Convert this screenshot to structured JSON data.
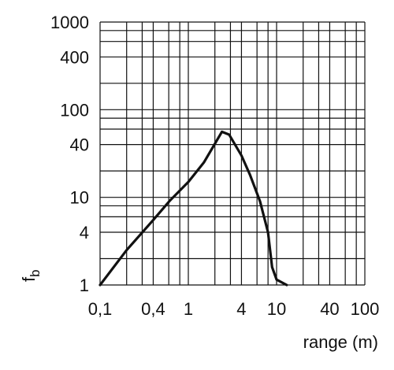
{
  "chart_data": {
    "type": "line",
    "x_label": "range (m)",
    "y_label": "f",
    "y_label_sub": "b",
    "log_x": true,
    "log_y": true,
    "grid": true,
    "xlim": [
      0.1,
      100
    ],
    "ylim": [
      1,
      1000
    ],
    "xticks": [
      {
        "value": 0.1,
        "label": "0,1"
      },
      {
        "value": 0.4,
        "label": "0,4"
      },
      1,
      4,
      10,
      40,
      100
    ],
    "yticks": [
      1,
      4,
      10,
      40,
      100,
      400,
      1000
    ],
    "xgrid": [
      0.1,
      0.2,
      0.3,
      0.4,
      0.6,
      0.8,
      1,
      2,
      3,
      4,
      6,
      8,
      10,
      20,
      30,
      40,
      60,
      80,
      100
    ],
    "ygrid": [
      1,
      2,
      4,
      6,
      8,
      10,
      20,
      40,
      60,
      80,
      100,
      200,
      400,
      600,
      800,
      1000
    ],
    "series": [
      {
        "color": "#111111",
        "x": [
          0.1,
          0.2,
          0.4,
          0.62,
          1,
          1.5,
          2.4,
          2.9,
          4,
          5,
          6.5,
          8,
          8.9,
          10,
          13
        ],
        "values": [
          1,
          2.5,
          5.5,
          9.2,
          15,
          25,
          56,
          52,
          30,
          18,
          9,
          4,
          1.6,
          1.15,
          1
        ]
      }
    ]
  }
}
